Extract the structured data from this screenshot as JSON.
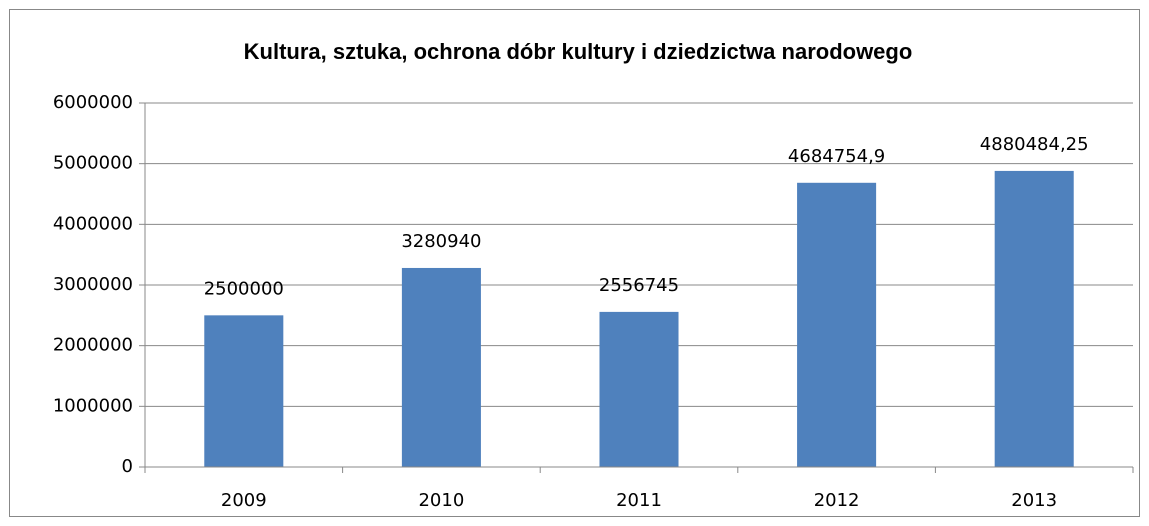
{
  "chart_data": {
    "type": "bar",
    "title": "Kultura, sztuka, ochrona dóbr kultury i dziedzictwa narodowego",
    "categories": [
      "2009",
      "2010",
      "2011",
      "2012",
      "2013"
    ],
    "values": [
      2500000,
      3280940,
      2556745,
      4684754.9,
      4880484.25
    ],
    "value_labels": [
      "2500000",
      "3280940",
      "2556745",
      "4684754,9",
      "4880484,25"
    ],
    "color": "#4f81bd",
    "ylim": [
      0,
      6000000
    ],
    "yticks": [
      0,
      1000000,
      2000000,
      3000000,
      4000000,
      5000000,
      6000000
    ],
    "grid": true
  }
}
